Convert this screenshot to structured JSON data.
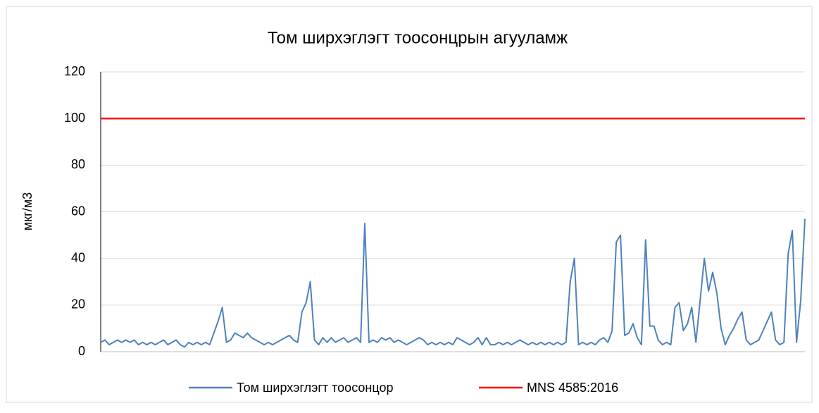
{
  "chart_data": {
    "type": "line",
    "title": "Том ширхэглэгт тоосонцрын агууламж",
    "y_label": "мкг/м3",
    "ylim": [
      0,
      120
    ],
    "yticks": [
      0,
      20,
      40,
      60,
      80,
      100,
      120
    ],
    "grid": true,
    "series": [
      {
        "name": "Том ширхэглэгт тоосонцор",
        "color": "#4f81bd",
        "values": [
          4,
          5,
          3,
          4,
          5,
          4,
          5,
          4,
          5,
          3,
          4,
          3,
          4,
          3,
          4,
          5,
          3,
          4,
          5,
          3,
          2,
          4,
          3,
          4,
          3,
          4,
          3,
          8,
          13,
          19,
          4,
          5,
          8,
          7,
          6,
          8,
          6,
          5,
          4,
          3,
          4,
          3,
          4,
          5,
          6,
          7,
          5,
          4,
          17,
          21,
          30,
          5,
          3,
          6,
          4,
          6,
          4,
          5,
          6,
          4,
          5,
          6,
          4,
          55,
          4,
          5,
          4,
          6,
          5,
          6,
          4,
          5,
          4,
          3,
          4,
          5,
          6,
          5,
          3,
          4,
          3,
          4,
          3,
          4,
          3,
          6,
          5,
          4,
          3,
          4,
          6,
          3,
          6,
          3,
          3,
          4,
          3,
          4,
          3,
          4,
          5,
          4,
          3,
          4,
          3,
          4,
          3,
          4,
          3,
          4,
          3,
          4,
          30,
          40,
          3,
          4,
          3,
          4,
          3,
          5,
          6,
          4,
          9,
          47,
          50,
          7,
          8,
          12,
          6,
          3,
          48,
          11,
          11,
          5,
          3,
          4,
          3,
          19,
          21,
          9,
          12,
          19,
          4,
          22,
          40,
          26,
          34,
          25,
          10,
          3,
          7,
          10,
          14,
          17,
          5,
          3,
          4,
          5,
          9,
          13,
          17,
          5,
          3,
          4,
          42,
          52,
          4,
          22,
          57
        ]
      }
    ],
    "reference_line": {
      "name": "MNS 4585:2016",
      "color": "#ff0000",
      "value": 100
    },
    "legend": "bottom"
  }
}
